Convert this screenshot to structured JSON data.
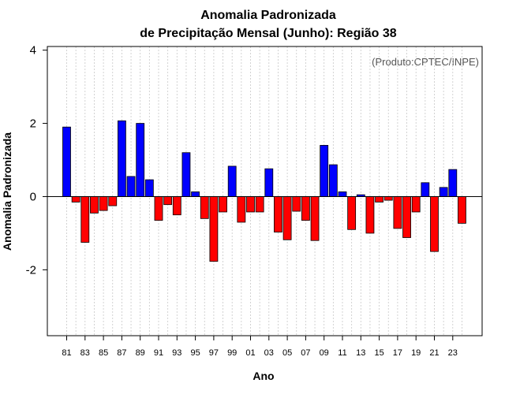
{
  "chart_data": {
    "type": "bar",
    "title_line1": "Anomalia Padronizada",
    "title_line2": "de Precipitação Mensal (Junho): Região 38",
    "xlabel": "Ano",
    "ylabel": "Anomalia Padronizada",
    "credit": "(Produto:CPTEC/INPE)",
    "ylim": [
      -3.8,
      4.1
    ],
    "yticks": [
      -2,
      0,
      2,
      4
    ],
    "ytick_labels": [
      "-2",
      "0",
      "2",
      "4"
    ],
    "xtick_labels": [
      "81",
      "83",
      "85",
      "87",
      "89",
      "91",
      "93",
      "95",
      "97",
      "99",
      "01",
      "03",
      "05",
      "07",
      "09",
      "11",
      "13",
      "15",
      "17",
      "19",
      "21",
      "23"
    ],
    "categories": [
      "1981",
      "1982",
      "1983",
      "1984",
      "1985",
      "1986",
      "1987",
      "1988",
      "1989",
      "1990",
      "1991",
      "1992",
      "1993",
      "1994",
      "1995",
      "1996",
      "1997",
      "1998",
      "1999",
      "2000",
      "2001",
      "2002",
      "2003",
      "2004",
      "2005",
      "2006",
      "2007",
      "2008",
      "2009",
      "2010",
      "2011",
      "2012",
      "2013",
      "2014",
      "2015",
      "2016",
      "2017",
      "2018",
      "2019",
      "2020",
      "2021",
      "2022",
      "2023",
      "2024"
    ],
    "values": [
      1.9,
      -0.15,
      -1.25,
      -0.45,
      -0.38,
      -0.25,
      2.07,
      0.55,
      2.0,
      0.46,
      -0.65,
      -0.22,
      -0.5,
      1.2,
      0.13,
      -0.6,
      -1.77,
      -0.42,
      0.83,
      -0.7,
      -0.42,
      -0.42,
      0.76,
      -0.97,
      -1.18,
      -0.4,
      -0.65,
      -1.2,
      1.4,
      0.87,
      0.13,
      -0.9,
      0.05,
      -1.0,
      -0.15,
      -0.1,
      -0.87,
      -1.12,
      -0.42,
      0.38,
      -1.5,
      0.25,
      0.74,
      -0.73
    ],
    "positive_color": "#0000ff",
    "negative_color": "#ff0000",
    "grid": true
  }
}
